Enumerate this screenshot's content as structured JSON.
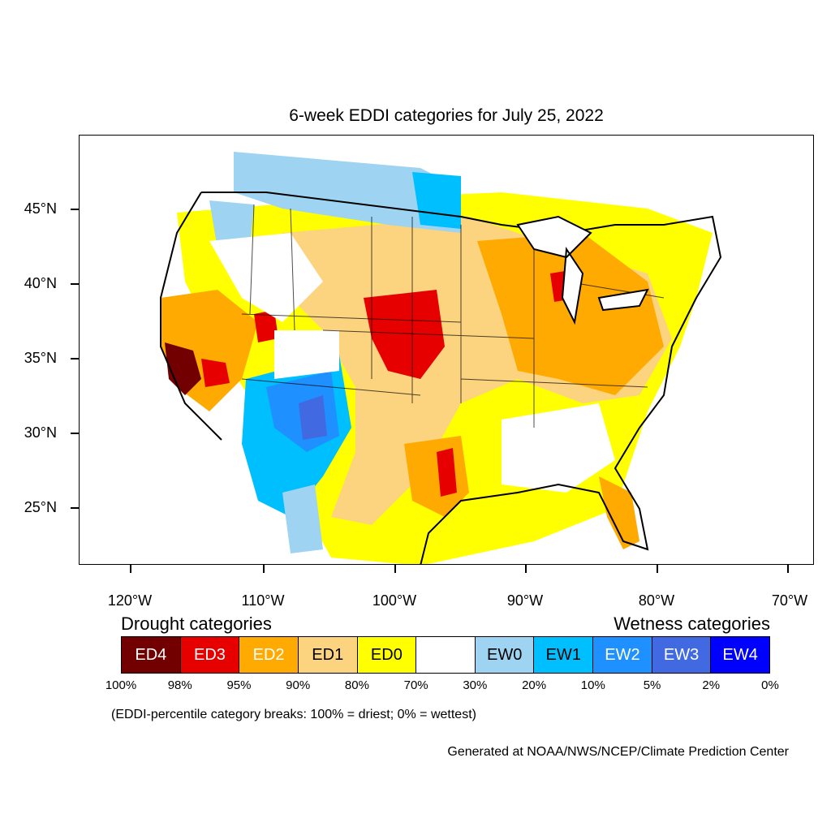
{
  "title": "6-week EDDI categories for July 25, 2022",
  "lat_labels": [
    "45°N",
    "40°N",
    "35°N",
    "30°N",
    "25°N"
  ],
  "lon_labels": [
    "120°W",
    "110°W",
    "100°W",
    "90°W",
    "80°W",
    "70°W"
  ],
  "legend": {
    "drought_title": "Drought categories",
    "wetness_title": "Wetness categories",
    "categories": [
      {
        "label": "ED4",
        "color": "#730000",
        "text_color": "#ffffff"
      },
      {
        "label": "ED3",
        "color": "#e60000",
        "text_color": "#ffffff"
      },
      {
        "label": "ED2",
        "color": "#ffaa00",
        "text_color": "#ffffff"
      },
      {
        "label": "ED1",
        "color": "#fcd37f",
        "text_color": "#000000"
      },
      {
        "label": "ED0",
        "color": "#ffff00",
        "text_color": "#000000"
      },
      {
        "label": "",
        "color": "#ffffff",
        "text_color": "#000000"
      },
      {
        "label": "EW0",
        "color": "#9fd3f2",
        "text_color": "#000000"
      },
      {
        "label": "EW1",
        "color": "#00bfff",
        "text_color": "#000000"
      },
      {
        "label": "EW2",
        "color": "#1e90ff",
        "text_color": "#ffffff"
      },
      {
        "label": "EW3",
        "color": "#4169e1",
        "text_color": "#ffffff"
      },
      {
        "label": "EW4",
        "color": "#0000ff",
        "text_color": "#ffffff"
      }
    ],
    "breaks": [
      "100%",
      "98%",
      "95%",
      "90%",
      "80%",
      "70%",
      "30%",
      "20%",
      "10%",
      "5%",
      "2%",
      "0%"
    ]
  },
  "note": "(EDDI-percentile category breaks: 100% = driest; 0% = wettest)",
  "credit": "Generated at NOAA/NWS/NCEP/Climate Prediction Center"
}
